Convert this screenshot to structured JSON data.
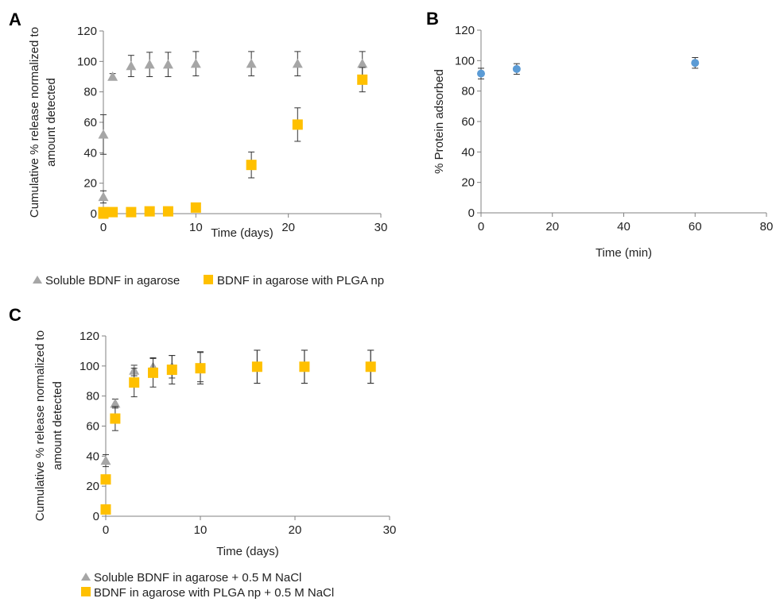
{
  "colors": {
    "soluble": "#a6a6a6",
    "plga": "#ffc000",
    "protein": "#5b9bd5",
    "axis": "#808080",
    "errorbar": "#333333"
  },
  "chart_data": [
    {
      "id": "A",
      "panel_label": "A",
      "type": "scatter",
      "xlabel": "Time (days)",
      "ylabel_lines": [
        "Cumulative % release normalized to",
        "amount detected"
      ],
      "xlim": [
        0,
        30
      ],
      "ylim": [
        0,
        120
      ],
      "xticks": [
        0,
        10,
        20,
        30
      ],
      "yticks": [
        0,
        20,
        40,
        60,
        80,
        100,
        120
      ],
      "legend_placement": "below",
      "series": [
        {
          "name": "Soluble BDNF in agarose",
          "marker": "triangle",
          "color": "#a6a6a6",
          "x": [
            0,
            0,
            1,
            3,
            5,
            7,
            10,
            16,
            21,
            28
          ],
          "y": [
            11,
            52,
            90,
            97,
            98,
            98,
            98.5,
            98.5,
            98.5,
            98.5
          ],
          "err": [
            4,
            13,
            2,
            7,
            8,
            8,
            8,
            8,
            8,
            8
          ]
        },
        {
          "name": "BDNF in agarose with PLGA np",
          "marker": "square",
          "color": "#ffc000",
          "x": [
            0,
            0,
            1,
            3,
            5,
            7,
            10,
            16,
            21,
            28
          ],
          "y": [
            0,
            1,
            1,
            1,
            1.5,
            1.5,
            4,
            32,
            58.5,
            88
          ],
          "err": [
            0,
            0,
            0,
            0,
            0,
            0,
            0,
            8.5,
            11,
            8
          ]
        }
      ]
    },
    {
      "id": "B",
      "panel_label": "B",
      "type": "scatter",
      "xlabel": "Time (min)",
      "ylabel_lines": [
        "% Protein adsorbed"
      ],
      "xlim": [
        0,
        80
      ],
      "ylim": [
        0,
        120
      ],
      "xticks": [
        0,
        20,
        40,
        60,
        80
      ],
      "yticks": [
        0,
        20,
        40,
        60,
        80,
        100,
        120
      ],
      "series": [
        {
          "name": "",
          "marker": "circle",
          "color": "#5b9bd5",
          "x": [
            0,
            10,
            60
          ],
          "y": [
            91.5,
            94.5,
            98.5
          ],
          "err": [
            3.5,
            3.5,
            3.5
          ]
        }
      ]
    },
    {
      "id": "C",
      "panel_label": "C",
      "type": "scatter",
      "xlabel": "Time (days)",
      "ylabel_lines": [
        "Cumulative % release normalized to",
        "amount detected"
      ],
      "xlim": [
        0,
        30
      ],
      "ylim": [
        0,
        120
      ],
      "xticks": [
        0,
        10,
        20,
        30
      ],
      "yticks": [
        0,
        20,
        40,
        60,
        80,
        100,
        120
      ],
      "legend_placement": "below",
      "series": [
        {
          "name": "Soluble BDNF in agarose + 0.5 M NaCl",
          "marker": "triangle",
          "color": "#a6a6a6",
          "x": [
            0,
            1,
            3,
            5,
            7,
            10,
            16,
            21,
            28
          ],
          "y": [
            37,
            75,
            97,
            99.5,
            99.5,
            99.5,
            99.5,
            99.5,
            99.5
          ],
          "err": [
            4,
            3,
            3.5,
            6,
            7.5,
            10,
            11,
            11,
            11
          ]
        },
        {
          "name": "BDNF in agarose with PLGA np + 0.5 M NaCl",
          "marker": "square",
          "color": "#ffc000",
          "x": [
            0,
            0,
            1,
            3,
            5,
            7,
            10,
            16,
            21,
            28
          ],
          "y": [
            4.5,
            24.5,
            65,
            89,
            95.5,
            97.5,
            98.5,
            99.5,
            99.5,
            99.5
          ],
          "err": [
            0,
            0,
            8,
            9.5,
            9.5,
            9.5,
            10.5,
            11,
            11,
            11
          ]
        }
      ]
    }
  ]
}
